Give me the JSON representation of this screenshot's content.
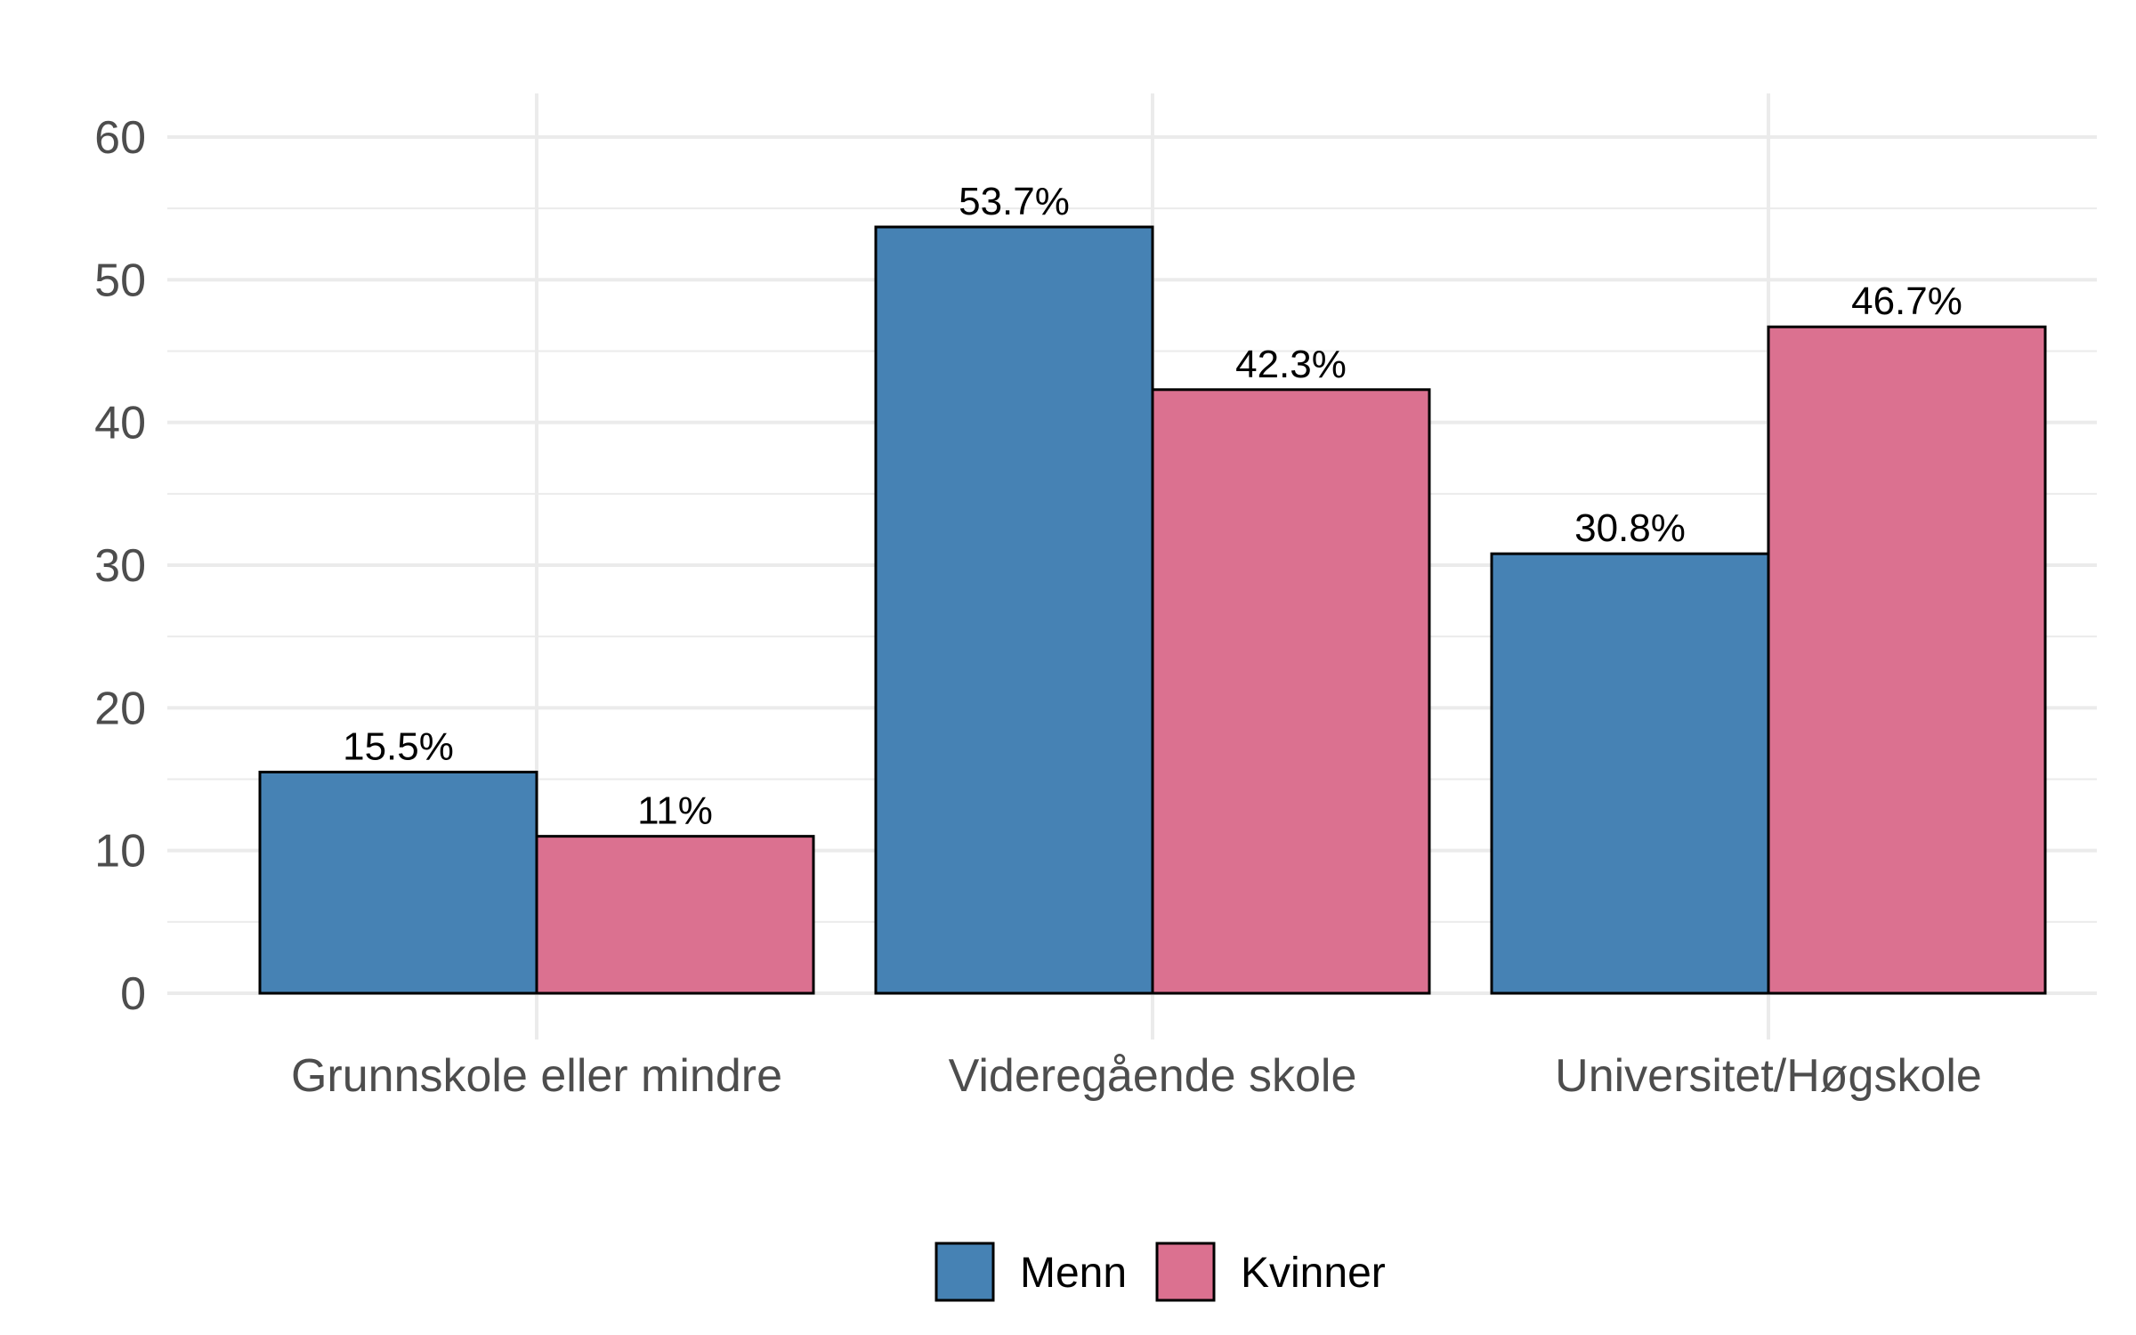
{
  "chart_data": {
    "type": "bar",
    "categories": [
      "Grunnskole eller mindre",
      "Videregående skole",
      "Universitet/Høgskole"
    ],
    "series": [
      {
        "name": "Menn",
        "values": [
          15.5,
          53.7,
          30.8
        ],
        "labels": [
          "15.5%",
          "53.7%",
          "30.8%"
        ],
        "color": "#4682b4"
      },
      {
        "name": "Kvinner",
        "values": [
          11,
          42.3,
          46.7
        ],
        "labels": [
          "11%",
          "42.3%",
          "46.7%"
        ],
        "color": "#db7190"
      }
    ],
    "yticks": [
      "0",
      "10",
      "20",
      "30",
      "40",
      "50",
      "60"
    ],
    "ylim": [
      0,
      60
    ],
    "title": "",
    "xlabel": "",
    "ylabel": "",
    "grid": true,
    "legend": "bottom",
    "colors": {
      "grid": "#ebebeb",
      "tick_text": "#4d4d4d",
      "bar_outline": "#000000"
    }
  }
}
